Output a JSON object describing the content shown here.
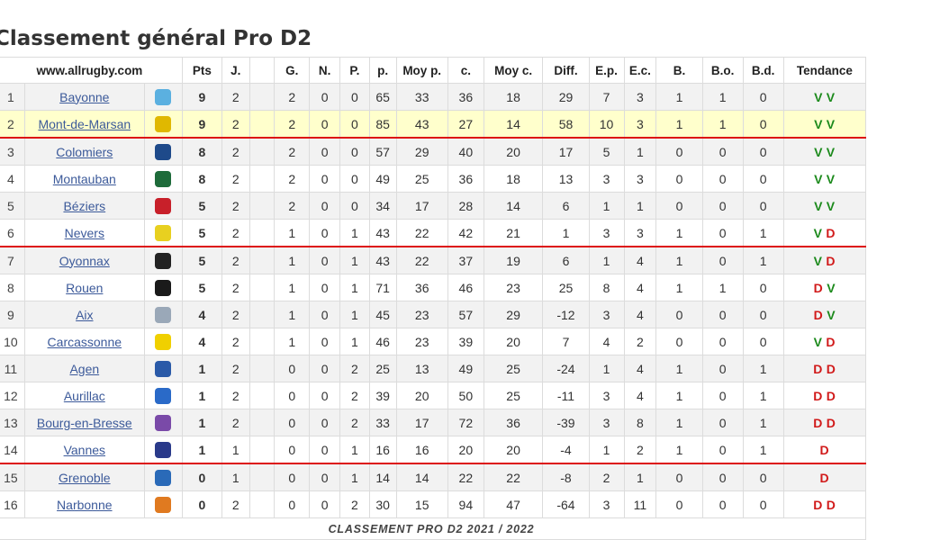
{
  "title": "Classement général Pro D2",
  "site": "www.allrugby.com",
  "headers": [
    "Pts",
    "J.",
    "",
    "G.",
    "N.",
    "P.",
    "p.",
    "Moy p.",
    "c.",
    "Moy c.",
    "Diff.",
    "E.p.",
    "E.c.",
    "B.",
    "B.o.",
    "B.d.",
    "Tendance"
  ],
  "colors": {
    "separator": "#dd1111",
    "highlight": "#ffffcc",
    "win": "#1c8a1c",
    "loss": "#d11a1a",
    "link": "#3c5a9a"
  },
  "rows": [
    {
      "rank": "1",
      "team": "Bayonne",
      "logo_icon": "bayonne-logo-icon",
      "logo_color": "#5bb0e0",
      "pts": "9",
      "j": "2",
      "g": "2",
      "n": "0",
      "p": "0",
      "pf": "65",
      "moyp": "33",
      "c": "36",
      "moyc": "18",
      "diff": "29",
      "ep": "7",
      "ec": "3",
      "b": "1",
      "bo": "1",
      "bd": "0",
      "trend": [
        "V",
        "V"
      ]
    },
    {
      "rank": "2",
      "team": "Mont-de-Marsan",
      "logo_icon": "mont-de-marsan-logo-icon",
      "logo_color": "#e0b800",
      "pts": "9",
      "j": "2",
      "g": "2",
      "n": "0",
      "p": "0",
      "pf": "85",
      "moyp": "43",
      "c": "27",
      "moyc": "14",
      "diff": "58",
      "ep": "10",
      "ec": "3",
      "b": "1",
      "bo": "1",
      "bd": "0",
      "trend": [
        "V",
        "V"
      ]
    },
    {
      "rank": "3",
      "team": "Colomiers",
      "logo_icon": "colomiers-logo-icon",
      "logo_color": "#1e4a8a",
      "pts": "8",
      "j": "2",
      "g": "2",
      "n": "0",
      "p": "0",
      "pf": "57",
      "moyp": "29",
      "c": "40",
      "moyc": "20",
      "diff": "17",
      "ep": "5",
      "ec": "1",
      "b": "0",
      "bo": "0",
      "bd": "0",
      "trend": [
        "V",
        "V"
      ]
    },
    {
      "rank": "4",
      "team": "Montauban",
      "logo_icon": "montauban-logo-icon",
      "logo_color": "#1e6b3a",
      "pts": "8",
      "j": "2",
      "g": "2",
      "n": "0",
      "p": "0",
      "pf": "49",
      "moyp": "25",
      "c": "36",
      "moyc": "18",
      "diff": "13",
      "ep": "3",
      "ec": "3",
      "b": "0",
      "bo": "0",
      "bd": "0",
      "trend": [
        "V",
        "V"
      ]
    },
    {
      "rank": "5",
      "team": "Béziers",
      "logo_icon": "beziers-logo-icon",
      "logo_color": "#c8202a",
      "pts": "5",
      "j": "2",
      "g": "2",
      "n": "0",
      "p": "0",
      "pf": "34",
      "moyp": "17",
      "c": "28",
      "moyc": "14",
      "diff": "6",
      "ep": "1",
      "ec": "1",
      "b": "0",
      "bo": "0",
      "bd": "0",
      "trend": [
        "V",
        "V"
      ]
    },
    {
      "rank": "6",
      "team": "Nevers",
      "logo_icon": "nevers-logo-icon",
      "logo_color": "#e8d020",
      "pts": "5",
      "j": "2",
      "g": "1",
      "n": "0",
      "p": "1",
      "pf": "43",
      "moyp": "22",
      "c": "42",
      "moyc": "21",
      "diff": "1",
      "ep": "3",
      "ec": "3",
      "b": "1",
      "bo": "0",
      "bd": "1",
      "trend": [
        "V",
        "D"
      ]
    },
    {
      "rank": "7",
      "team": "Oyonnax",
      "logo_icon": "oyonnax-logo-icon",
      "logo_color": "#222222",
      "pts": "5",
      "j": "2",
      "g": "1",
      "n": "0",
      "p": "1",
      "pf": "43",
      "moyp": "22",
      "c": "37",
      "moyc": "19",
      "diff": "6",
      "ep": "1",
      "ec": "4",
      "b": "1",
      "bo": "0",
      "bd": "1",
      "trend": [
        "V",
        "D"
      ]
    },
    {
      "rank": "8",
      "team": "Rouen",
      "logo_icon": "rouen-logo-icon",
      "logo_color": "#1a1a1a",
      "pts": "5",
      "j": "2",
      "g": "1",
      "n": "0",
      "p": "1",
      "pf": "71",
      "moyp": "36",
      "c": "46",
      "moyc": "23",
      "diff": "25",
      "ep": "8",
      "ec": "4",
      "b": "1",
      "bo": "1",
      "bd": "0",
      "trend": [
        "D",
        "V"
      ]
    },
    {
      "rank": "9",
      "team": "Aix",
      "logo_icon": "aix-logo-icon",
      "logo_color": "#9aa8b8",
      "pts": "4",
      "j": "2",
      "g": "1",
      "n": "0",
      "p": "1",
      "pf": "45",
      "moyp": "23",
      "c": "57",
      "moyc": "29",
      "diff": "-12",
      "ep": "3",
      "ec": "4",
      "b": "0",
      "bo": "0",
      "bd": "0",
      "trend": [
        "D",
        "V"
      ]
    },
    {
      "rank": "10",
      "team": "Carcassonne",
      "logo_icon": "carcassonne-logo-icon",
      "logo_color": "#f0d000",
      "pts": "4",
      "j": "2",
      "g": "1",
      "n": "0",
      "p": "1",
      "pf": "46",
      "moyp": "23",
      "c": "39",
      "moyc": "20",
      "diff": "7",
      "ep": "4",
      "ec": "2",
      "b": "0",
      "bo": "0",
      "bd": "0",
      "trend": [
        "V",
        "D"
      ]
    },
    {
      "rank": "11",
      "team": "Agen",
      "logo_icon": "agen-logo-icon",
      "logo_color": "#2a5aa8",
      "pts": "1",
      "j": "2",
      "g": "0",
      "n": "0",
      "p": "2",
      "pf": "25",
      "moyp": "13",
      "c": "49",
      "moyc": "25",
      "diff": "-24",
      "ep": "1",
      "ec": "4",
      "b": "1",
      "bo": "0",
      "bd": "1",
      "trend": [
        "D",
        "D"
      ]
    },
    {
      "rank": "12",
      "team": "Aurillac",
      "logo_icon": "aurillac-logo-icon",
      "logo_color": "#2a6ac8",
      "pts": "1",
      "j": "2",
      "g": "0",
      "n": "0",
      "p": "2",
      "pf": "39",
      "moyp": "20",
      "c": "50",
      "moyc": "25",
      "diff": "-11",
      "ep": "3",
      "ec": "4",
      "b": "1",
      "bo": "0",
      "bd": "1",
      "trend": [
        "D",
        "D"
      ]
    },
    {
      "rank": "13",
      "team": "Bourg-en-Bresse",
      "logo_icon": "bourg-en-bresse-logo-icon",
      "logo_color": "#7a4aa8",
      "pts": "1",
      "j": "2",
      "g": "0",
      "n": "0",
      "p": "2",
      "pf": "33",
      "moyp": "17",
      "c": "72",
      "moyc": "36",
      "diff": "-39",
      "ep": "3",
      "ec": "8",
      "b": "1",
      "bo": "0",
      "bd": "1",
      "trend": [
        "D",
        "D"
      ]
    },
    {
      "rank": "14",
      "team": "Vannes",
      "logo_icon": "vannes-logo-icon",
      "logo_color": "#2a3a8a",
      "pts": "1",
      "j": "1",
      "g": "0",
      "n": "0",
      "p": "1",
      "pf": "16",
      "moyp": "16",
      "c": "20",
      "moyc": "20",
      "diff": "-4",
      "ep": "1",
      "ec": "2",
      "b": "1",
      "bo": "0",
      "bd": "1",
      "trend": [
        "D"
      ]
    },
    {
      "rank": "15",
      "team": "Grenoble",
      "logo_icon": "grenoble-logo-icon",
      "logo_color": "#2a6ab8",
      "pts": "0",
      "j": "1",
      "g": "0",
      "n": "0",
      "p": "1",
      "pf": "14",
      "moyp": "14",
      "c": "22",
      "moyc": "22",
      "diff": "-8",
      "ep": "2",
      "ec": "1",
      "b": "0",
      "bo": "0",
      "bd": "0",
      "trend": [
        "D"
      ]
    },
    {
      "rank": "16",
      "team": "Narbonne",
      "logo_icon": "narbonne-logo-icon",
      "logo_color": "#e07a20",
      "pts": "0",
      "j": "2",
      "g": "0",
      "n": "0",
      "p": "2",
      "pf": "30",
      "moyp": "15",
      "c": "94",
      "moyc": "47",
      "diff": "-64",
      "ep": "3",
      "ec": "11",
      "b": "0",
      "bo": "0",
      "bd": "0",
      "trend": [
        "D",
        "D"
      ]
    }
  ],
  "footer": "CLASSEMENT PRO D2 2021 / 2022"
}
